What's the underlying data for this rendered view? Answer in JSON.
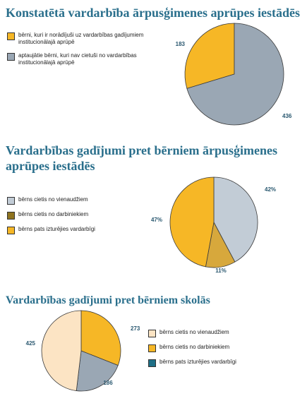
{
  "colors": {
    "title": "#2a6f8c",
    "data_label": "#2a5870",
    "yellow": "#f6b726",
    "gray_blue": "#9aa7b4",
    "light_gray_blue": "#c2ccd6",
    "olive_gold": "#d7a83c",
    "beige": "#fce4c4",
    "teal": "#1e6f86",
    "dark_olive": "#8f7420"
  },
  "chart_data": [
    {
      "type": "pie",
      "title": "Konstatētā vardarbība ārpusģimenes aprūpes iestādēs",
      "slices": [
        {
          "name": "bērni, kuri ir norādījuši uz vardarbības gadījumiem institucionālajā aprūpē",
          "value": 183,
          "label": "183",
          "color": "#f6b726"
        },
        {
          "name": "aptaujātie bērni, kuri nav cietuši no vardarbības institucionālajā aprūpē",
          "value": 436,
          "label": "436",
          "color": "#9aa7b4"
        }
      ],
      "legend": [
        {
          "label": "bērni, kuri ir norādījuši uz vardarbības gadījumiem institucionālajā aprūpē",
          "color": "#f6b726"
        },
        {
          "label": "aptaujātie bērni, kuri nav cietuši no vardarbības institucionālajā aprūpē",
          "color": "#9aa7b4"
        }
      ],
      "legend_position": "left"
    },
    {
      "type": "pie",
      "title": "Vardarbības gadījumi pret bērniem ārpusģimenes aprūpes iestādēs",
      "slices": [
        {
          "name": "bērns cietis no vienaudžiem",
          "value": 42,
          "label": "42%",
          "color": "#c2ccd6"
        },
        {
          "name": "bērns cietis no darbiniekiem",
          "value": 11,
          "label": "11%",
          "color": "#d7a83c"
        },
        {
          "name": "bērns pats izturējies vardarbīgi",
          "value": 47,
          "label": "47%",
          "color": "#f6b726"
        }
      ],
      "legend": [
        {
          "label": "bērns cietis no vienaudžiem",
          "color": "#c2ccd6"
        },
        {
          "label": "bērns cietis no darbiniekiem",
          "color": "#8f7420"
        },
        {
          "label": "bērns pats izturējies vardarbīgi",
          "color": "#f6b726"
        }
      ],
      "legend_position": "left"
    },
    {
      "type": "pie",
      "title": "Vardarbības gadījumi pret bērniem skolās",
      "slices": [
        {
          "name": "bērns cietis no darbiniekiem",
          "value": 273,
          "label": "273",
          "color": "#f6b726"
        },
        {
          "name": "bērns pats izturējies vardarbīgi",
          "value": 186,
          "label": "186",
          "color": "#9aa7b4"
        },
        {
          "name": "bērns cietis no vienaudžiem",
          "value": 425,
          "label": "425",
          "color": "#fce4c4"
        }
      ],
      "legend": [
        {
          "label": "bērns cietis no vienaudžiem",
          "color": "#fce4c4"
        },
        {
          "label": "bērns cietis no darbiniekiem",
          "color": "#f6b726"
        },
        {
          "label": "bērns pats izturējies vardarbīgi",
          "color": "#1e6f86"
        }
      ],
      "legend_position": "right"
    }
  ]
}
